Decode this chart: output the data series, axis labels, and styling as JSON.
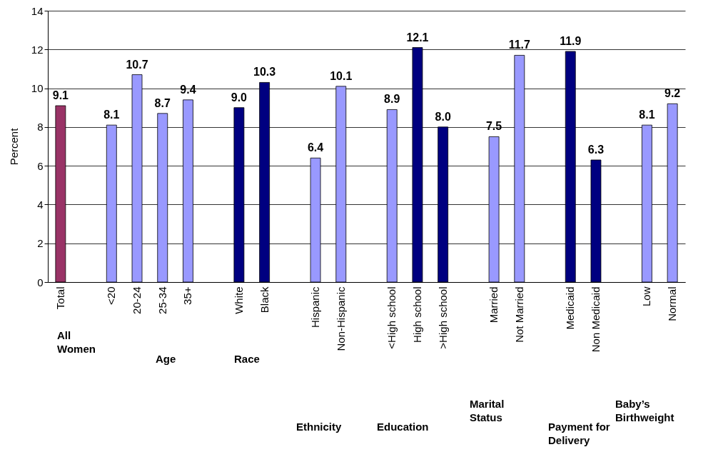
{
  "chart_data": {
    "type": "bar",
    "ylabel": "Percent",
    "categories": [
      "Total",
      null,
      "<20",
      "20-24",
      "25-34",
      "35+",
      null,
      "White",
      "Black",
      null,
      "Hispanic",
      "Non-Hispanic",
      null,
      "<High school",
      "High school",
      ">High school",
      null,
      "Married",
      "Not Married",
      null,
      "Medicaid",
      "Non Medicaid",
      null,
      "Low",
      "Normal"
    ],
    "values": [
      9.1,
      null,
      8.1,
      10.7,
      8.7,
      9.4,
      null,
      9.0,
      10.3,
      null,
      6.4,
      10.1,
      null,
      8.9,
      12.1,
      8.0,
      null,
      7.5,
      11.7,
      null,
      11.9,
      6.3,
      null,
      8.1,
      9.2
    ],
    "value_labels": [
      "9.1",
      null,
      "8.1",
      "10.7",
      "8.7",
      "9.4",
      null,
      "9.0",
      "10.3",
      null,
      "6.4",
      "10.1",
      null,
      "8.9",
      "12.1",
      "8.0",
      null,
      "7.5",
      "11.7",
      null,
      "11.9",
      "6.3",
      null,
      "8.1",
      "9.2"
    ],
    "colors": [
      "#993366",
      null,
      "#9999ff",
      "#9999ff",
      "#9999ff",
      "#9999ff",
      null,
      "#000080",
      "#000080",
      null,
      "#9999ff",
      "#9999ff",
      null,
      "#9999ff",
      "#000080",
      "#000080",
      null,
      "#9999ff",
      "#9999ff",
      null,
      "#000080",
      "#000080",
      null,
      "#9999ff",
      "#9999ff"
    ],
    "ylim": [
      0,
      14
    ],
    "yticks": [
      0,
      2,
      4,
      6,
      8,
      10,
      12,
      14
    ],
    "grid": "y",
    "annotations": [
      "All Women",
      "Age",
      "Race",
      "Ethnicity",
      "Education",
      "Marital Status",
      "Payment for Delivery",
      "Baby’s Birthweight"
    ]
  }
}
